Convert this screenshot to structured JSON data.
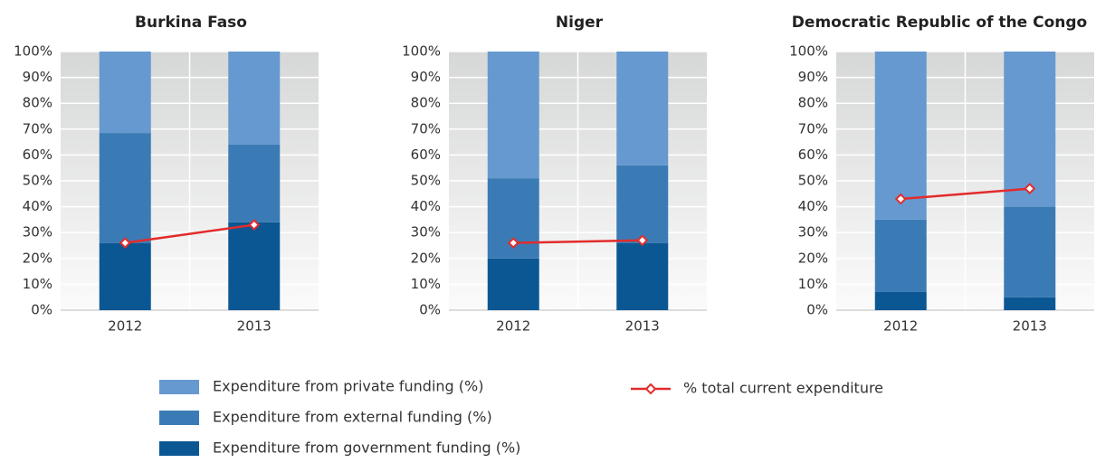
{
  "chart_data": [
    {
      "type": "bar",
      "title": "Burkina Faso",
      "categories": [
        "2012",
        "2013"
      ],
      "series": [
        {
          "values": [
            26,
            34
          ]
        },
        {
          "values": [
            42.5,
            30
          ]
        },
        {
          "values": [
            31.5,
            36
          ]
        }
      ],
      "line": {
        "values": [
          26,
          33
        ]
      },
      "ylim": [
        0,
        100
      ],
      "yticks": [
        {
          "value": 0,
          "label": "0%"
        },
        {
          "value": 10,
          "label": "10%"
        },
        {
          "value": 20,
          "label": "20%"
        },
        {
          "value": 30,
          "label": "30%"
        },
        {
          "value": 40,
          "label": "40%"
        },
        {
          "value": 50,
          "label": "50%"
        },
        {
          "value": 60,
          "label": "60%"
        },
        {
          "value": 70,
          "label": "70%"
        },
        {
          "value": 80,
          "label": "80%"
        },
        {
          "value": 90,
          "label": "90%"
        },
        {
          "value": 100,
          "label": "100%"
        }
      ]
    },
    {
      "type": "bar",
      "title": "Niger",
      "categories": [
        "2012",
        "2013"
      ],
      "series": [
        {
          "values": [
            20,
            26
          ]
        },
        {
          "values": [
            31,
            30
          ]
        },
        {
          "values": [
            49,
            44
          ]
        }
      ],
      "line": {
        "values": [
          26,
          27
        ]
      },
      "ylim": [
        0,
        100
      ],
      "yticks": [
        {
          "value": 0,
          "label": "0%"
        },
        {
          "value": 10,
          "label": "10%"
        },
        {
          "value": 20,
          "label": "20%"
        },
        {
          "value": 30,
          "label": "30%"
        },
        {
          "value": 40,
          "label": "40%"
        },
        {
          "value": 50,
          "label": "50%"
        },
        {
          "value": 60,
          "label": "60%"
        },
        {
          "value": 70,
          "label": "70%"
        },
        {
          "value": 80,
          "label": "80%"
        },
        {
          "value": 90,
          "label": "90%"
        },
        {
          "value": 100,
          "label": "100%"
        }
      ]
    },
    {
      "type": "bar",
      "title": "Democratic Republic of the Congo",
      "categories": [
        "2012",
        "2013"
      ],
      "series": [
        {
          "values": [
            7,
            5
          ]
        },
        {
          "values": [
            28,
            35
          ]
        },
        {
          "values": [
            65,
            60
          ]
        }
      ],
      "line": {
        "values": [
          43,
          47
        ]
      },
      "ylim": [
        0,
        100
      ],
      "yticks": [
        {
          "value": 0,
          "label": "0%"
        },
        {
          "value": 10,
          "label": "10%"
        },
        {
          "value": 20,
          "label": "20%"
        },
        {
          "value": 30,
          "label": "30%"
        },
        {
          "value": 40,
          "label": "40%"
        },
        {
          "value": 50,
          "label": "50%"
        },
        {
          "value": 60,
          "label": "60%"
        },
        {
          "value": 70,
          "label": "70%"
        },
        {
          "value": 80,
          "label": "80%"
        },
        {
          "value": 90,
          "label": "90%"
        },
        {
          "value": 100,
          "label": "100%"
        }
      ]
    }
  ],
  "legend": {
    "series": [
      {
        "name": "Expenditure from government funding (%)",
        "color": "#0b5794"
      },
      {
        "name": "Expenditure from external funding (%)",
        "color": "#3b7bb5"
      },
      {
        "name": "Expenditure from private funding (%)",
        "color": "#6699d0"
      }
    ],
    "line": {
      "name": "% total current expenditure",
      "color": "#e32b2b"
    }
  }
}
